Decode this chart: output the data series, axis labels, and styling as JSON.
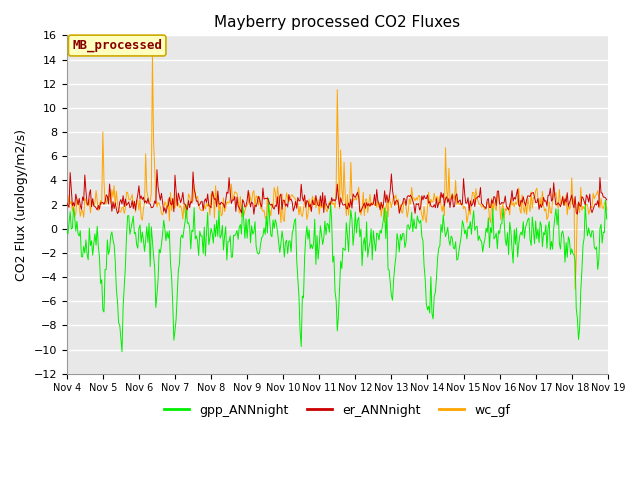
{
  "title": "Mayberry processed CO2 Fluxes",
  "ylabel": "CO2 Flux (urology/m2/s)",
  "ylim": [
    -12,
    16
  ],
  "yticks": [
    -12,
    -10,
    -8,
    -6,
    -4,
    -2,
    0,
    2,
    4,
    6,
    8,
    10,
    12,
    14,
    16
  ],
  "legend_label": "MB_processed",
  "legend_entries": [
    "gpp_ANNnight",
    "er_ANNnight",
    "wc_gf"
  ],
  "line_colors": [
    "#00EE00",
    "#CC0000",
    "#FFA500"
  ],
  "legend_box_facecolor": "#FFFFC0",
  "legend_box_edgecolor": "#CCAA00",
  "legend_text_color": "#880000",
  "background_color": "#E8E8E8",
  "title_fontsize": 11,
  "axis_label_fontsize": 9,
  "tick_label_fontsize": 8,
  "legend_fontsize": 9,
  "x_tick_labels": [
    "Nov 4",
    "Nov 5",
    "Nov 6",
    "Nov 7",
    "Nov 8",
    "Nov 9",
    "Nov 10",
    "Nov 11",
    "Nov 12",
    "Nov 13",
    "Nov 14",
    "Nov 15",
    "Nov 16",
    "Nov 17",
    "Nov 18",
    "Nov 19"
  ],
  "n_points": 480,
  "seed": 42
}
